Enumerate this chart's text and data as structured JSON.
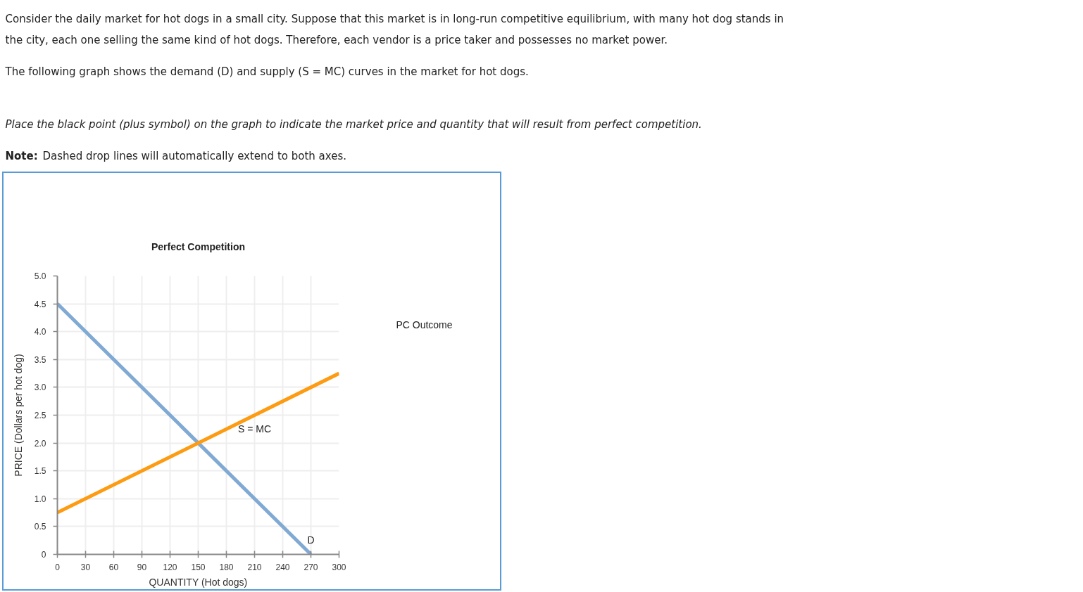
{
  "chart_data": {
    "type": "line",
    "title": "Perfect Competition",
    "xlabel": "QUANTITY (Hot dogs)",
    "ylabel": "PRICE (Dollars per hot dog)",
    "xlim": [
      0,
      300
    ],
    "ylim": [
      0,
      5
    ],
    "xticks": [
      0,
      30,
      60,
      90,
      120,
      150,
      180,
      210,
      240,
      270,
      300
    ],
    "yticks": [
      0,
      0.5,
      {
        "value": 1,
        "label": "1.0"
      },
      1.5,
      {
        "value": 2,
        "label": "2.0"
      },
      2.5,
      {
        "value": 3,
        "label": "3.0"
      },
      3.5,
      {
        "value": 4,
        "label": "4.0"
      },
      4.5,
      {
        "value": 5,
        "label": "5.0"
      }
    ],
    "grid": true,
    "marker": "none",
    "line_style": "solid",
    "series": [
      {
        "name": "D",
        "color": "#80a9d3",
        "x": [
          0,
          270
        ],
        "values": [
          4.5,
          0
        ]
      },
      {
        "name": "S = MC",
        "color": "#fd9b12",
        "x": [
          0,
          300
        ],
        "values": [
          0.75,
          3.25
        ]
      }
    ],
    "annotations": [
      "Consider the daily market for hot dogs in a small city. Suppose that this market is in long-run competitive equilibrium, with many hot dog stands in the city, each one selling the same kind of hot dogs. Therefore, each vendor is a price taker and possesses no market power.",
      "The following graph shows the demand (D) and supply (S = MC) curves in the market for hot dogs.",
      "Place the black point (plus symbol) on the graph to indicate the market price and quantity that will result from perfect competition.",
      "Note: Dashed drop lines will automatically extend to both axes.",
      "PC Outcome"
    ]
  }
}
